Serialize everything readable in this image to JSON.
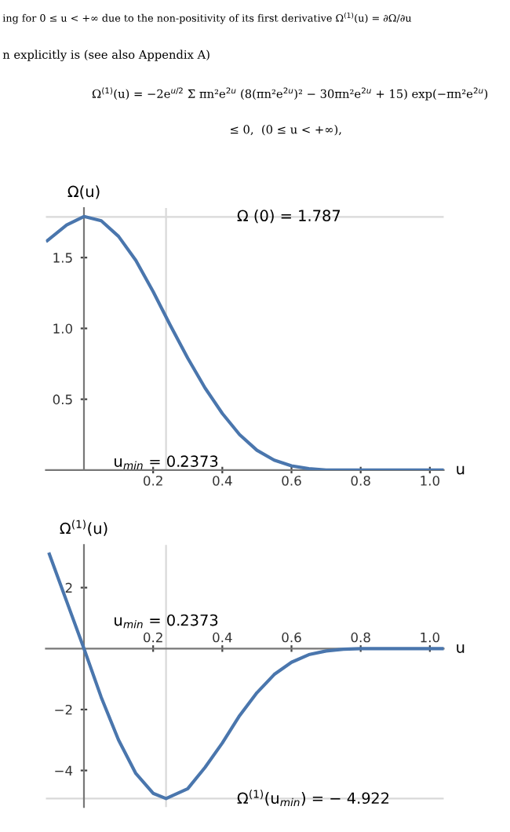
{
  "chart_data": [
    {
      "type": "line",
      "xlabel": "u",
      "ylabel": "Ω(u)",
      "annotations": [
        "ing for 0 ≤ u < +∞ due to the non-positivity of its first derivative Ω$^{(1)}$(u) = ∂Ω/∂u",
        "n explicitly is (see also Appendix A)",
        "Ω$^{(1)}$(u) = −2e$^{u/2}$ Σ πn²e$^{2u}$ (8(πn²e$^{2u}$)² − 30πn²e$^{2u}$ + 15) exp(−πn²e$^{2u}$)",
        "≤ 0,  (0 ≤ u < +∞),"
      ],
      "x": [
        -0.106,
        -0.05,
        0,
        0.05,
        0.1,
        0.15,
        0.2,
        0.25,
        0.3,
        0.35,
        0.4,
        0.45,
        0.5,
        0.55,
        0.6,
        0.65,
        0.7,
        0.8,
        0.9,
        1.037
      ],
      "series": [
        {
          "color": "#4a76ad",
          "values": [
            1.62,
            1.73,
            1.79,
            1.76,
            1.65,
            1.48,
            1.26,
            1.02,
            0.79,
            0.58,
            0.4,
            0.25,
            0.14,
            0.07,
            0.03,
            0.01,
            0,
            0,
            0,
            0
          ]
        }
      ],
      "xlim": [
        -0.11,
        1.04
      ],
      "ylim": [
        0,
        1.85
      ],
      "xticks": [
        0.2,
        0.4,
        0.6,
        0.8,
        {
          "value": 1,
          "label": "1.0"
        }
      ],
      "yticks": [
        0.5,
        {
          "value": 1,
          "label": "1.0"
        },
        1.5
      ],
      "ref_lines": [
        {
          "axis": "x",
          "value": 0.2373,
          "label": "u$_{min}$ = 0.2373",
          "color": "#d9d9d9"
        },
        {
          "axis": "y",
          "value": 1.787,
          "label": "Ω (0) = 1.787",
          "color": "#d9d9d9"
        }
      ],
      "marker": "none",
      "line_style": "solid",
      "grid": false,
      "legend": false
    },
    {
      "type": "line",
      "xlabel": "u",
      "ylabel": "Ω$^{(1)}$(u)",
      "x": [
        -0.1,
        -0.05,
        0,
        0.05,
        0.1,
        0.15,
        0.2,
        0.2373,
        0.3,
        0.35,
        0.4,
        0.45,
        0.5,
        0.55,
        0.6,
        0.65,
        0.7,
        0.75,
        0.8,
        1.037
      ],
      "series": [
        {
          "color": "#4a76ad",
          "values": [
            3.1,
            1.55,
            0,
            -1.6,
            -3.0,
            -4.1,
            -4.75,
            -4.92,
            -4.6,
            -3.9,
            -3.1,
            -2.2,
            -1.45,
            -0.85,
            -0.45,
            -0.2,
            -0.08,
            -0.02,
            0,
            0
          ]
        }
      ],
      "xlim": [
        -0.11,
        1.04
      ],
      "ylim": [
        -5.2,
        3.4
      ],
      "xticks": [
        0.2,
        0.4,
        0.6,
        0.8,
        {
          "value": 1,
          "label": "1.0"
        }
      ],
      "yticks": [
        2,
        {
          "value": -2,
          "label": "−2"
        },
        {
          "value": -4,
          "label": "−4"
        }
      ],
      "ref_lines": [
        {
          "axis": "x",
          "value": 0.2373,
          "label": "u$_{min}$ = 0.2373",
          "color": "#d9d9d9"
        },
        {
          "axis": "y",
          "value": -4.922,
          "label": "Ω$^{(1)}$(u$_{min}$) = − 4.922",
          "color": "#d9d9d9"
        }
      ],
      "marker": "none",
      "line_style": "solid",
      "grid": false,
      "legend": false
    }
  ]
}
